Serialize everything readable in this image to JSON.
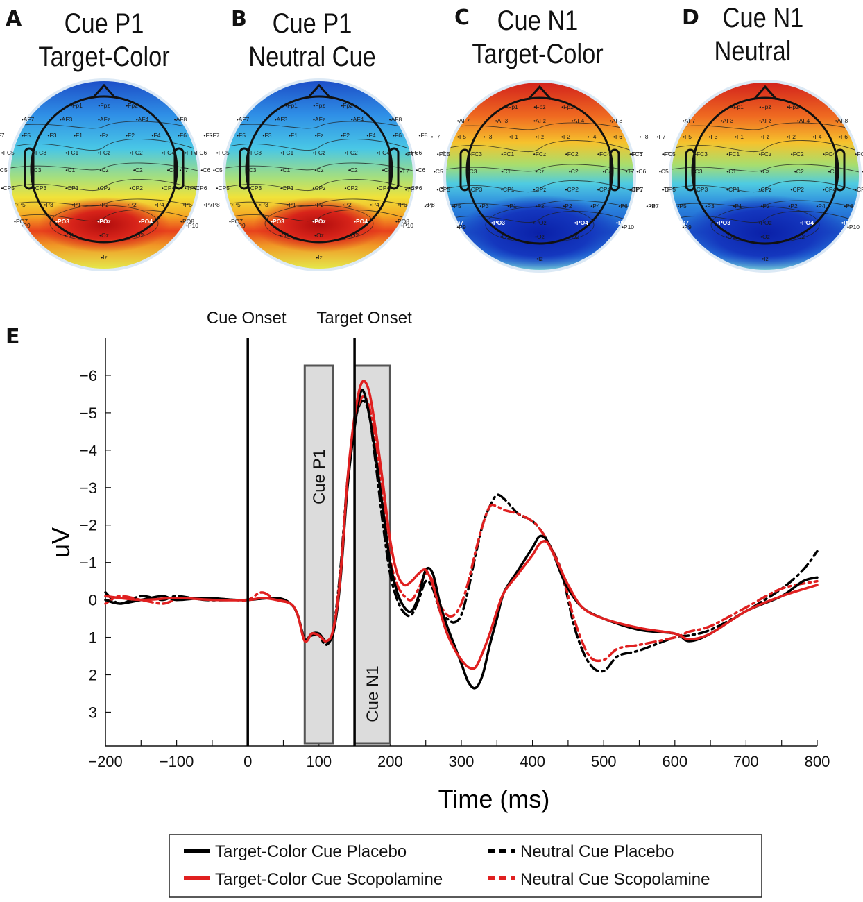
{
  "panels": [
    {
      "letter": "A",
      "title_line1": "Cue P1",
      "title_line2": "Target-Color"
    },
    {
      "letter": "B",
      "title_line1": "Cue P1",
      "title_line2": "Neutral Cue"
    },
    {
      "letter": "C",
      "title_line1": "Cue N1",
      "title_line2": "Target-Color"
    },
    {
      "letter": "D",
      "title_line1": "Cue N1",
      "title_line2": "Neutral"
    }
  ],
  "electrodes": {
    "fp": [
      "Fp1",
      "Fpz",
      "Fp2"
    ],
    "af": [
      "AF7",
      "AF3",
      "AFz",
      "AF4",
      "AF8"
    ],
    "f": [
      "F7",
      "F5",
      "F3",
      "F1",
      "Fz",
      "F2",
      "F4",
      "F6",
      "F8"
    ],
    "fc": [
      "FT7",
      "FC5",
      "FC3",
      "FC1",
      "FCz",
      "FC2",
      "FC4",
      "FC6",
      "FT8"
    ],
    "c": [
      "T7",
      "C5",
      "C3",
      "C1",
      "Cz",
      "C2",
      "C4",
      "C6",
      "T8"
    ],
    "cp": [
      "TP7",
      "CP5",
      "CP3",
      "CP1",
      "CPz",
      "CP2",
      "CP4",
      "CP6",
      "TP8"
    ],
    "p": [
      "P7",
      "P5",
      "P3",
      "P1",
      "Pz",
      "P2",
      "P4",
      "P6",
      "P8"
    ],
    "p_outer": [
      "P9",
      "P10"
    ],
    "po": [
      "PO7",
      "PO3",
      "POz",
      "PO4",
      "PO8"
    ],
    "o": [
      "O1",
      "Oz",
      "O2"
    ],
    "iz": "Iz",
    "highlight_p1": [
      "PO3",
      "POz",
      "PO4"
    ],
    "highlight_n1": [
      "PO7",
      "PO3",
      "PO4",
      "PO8"
    ]
  },
  "panel_e": {
    "letter": "E"
  },
  "chart_data": {
    "type": "line",
    "xlabel": "Time (ms)",
    "ylabel": "uV",
    "xlim": [
      -200,
      800
    ],
    "ylim": [
      3.9,
      -7.0
    ],
    "y_inverted": true,
    "x_ticks": [
      -200,
      -100,
      0,
      100,
      200,
      300,
      400,
      500,
      600,
      700,
      800
    ],
    "x_tick_labels": [
      "−200",
      "−100",
      "0",
      "100",
      "200",
      "300",
      "400",
      "500",
      "600",
      "700",
      "800"
    ],
    "y_ticks": [
      -6,
      -5,
      -4,
      -3,
      -2,
      -1,
      0,
      1,
      2,
      3
    ],
    "y_tick_labels": [
      "−6",
      "−5",
      "−4",
      "−3",
      "−2",
      "−1",
      "0",
      "1",
      "2",
      "3"
    ],
    "vlines": [
      {
        "x": 0,
        "label": "Cue Onset"
      },
      {
        "x": 150,
        "label": "Target Onset"
      }
    ],
    "windows": [
      {
        "x0": 80,
        "x1": 120,
        "label": "Cue P1"
      },
      {
        "x0": 150,
        "x1": 200,
        "label": "Cue N1"
      }
    ],
    "series": [
      {
        "name": "Target-Color Cue Placebo",
        "color": "#000000",
        "style": "solid",
        "x": [
          -200,
          -180,
          -150,
          -120,
          -100,
          -60,
          -20,
          0,
          40,
          60,
          70,
          80,
          90,
          100,
          110,
          120,
          130,
          140,
          150,
          160,
          170,
          180,
          190,
          200,
          210,
          220,
          230,
          240,
          250,
          260,
          270,
          280,
          290,
          300,
          310,
          320,
          330,
          340,
          350,
          360,
          380,
          400,
          410,
          420,
          430,
          440,
          450,
          470,
          500,
          550,
          600,
          620,
          650,
          700,
          750,
          780,
          800
        ],
        "y": [
          0,
          0.1,
          0.0,
          -0.1,
          0.0,
          -0.05,
          0.0,
          0.0,
          -0.05,
          0.1,
          0.4,
          1.05,
          0.9,
          0.9,
          1.1,
          0.9,
          -0.5,
          -3.0,
          -4.6,
          -5.6,
          -5.0,
          -3.8,
          -2.4,
          -1.0,
          -0.2,
          0.2,
          0.3,
          -0.1,
          -0.8,
          -0.7,
          0.1,
          0.7,
          1.2,
          1.7,
          2.2,
          2.35,
          2.0,
          1.2,
          0.5,
          -0.2,
          -0.8,
          -1.4,
          -1.7,
          -1.6,
          -1.2,
          -0.7,
          -0.3,
          0.2,
          0.5,
          0.8,
          0.9,
          1.1,
          0.9,
          0.3,
          -0.1,
          -0.5,
          -0.6
        ]
      },
      {
        "name": "Target-Color Cue Scopolamine",
        "color": "#e02020",
        "style": "solid",
        "x": [
          -200,
          -150,
          -100,
          -50,
          0,
          20,
          40,
          60,
          70,
          80,
          90,
          100,
          110,
          120,
          130,
          140,
          150,
          160,
          170,
          180,
          190,
          200,
          210,
          220,
          230,
          240,
          250,
          260,
          270,
          280,
          290,
          300,
          310,
          320,
          330,
          340,
          350,
          360,
          380,
          400,
          410,
          420,
          430,
          440,
          450,
          470,
          500,
          550,
          600,
          620,
          650,
          700,
          750,
          800
        ],
        "y": [
          -0.1,
          0.0,
          -0.05,
          0.0,
          0.0,
          -0.05,
          0.0,
          0.1,
          0.4,
          1.1,
          0.9,
          0.95,
          1.1,
          0.8,
          -0.6,
          -3.2,
          -4.9,
          -5.8,
          -5.6,
          -4.5,
          -3.1,
          -1.6,
          -0.7,
          -0.4,
          -0.5,
          -0.7,
          -0.8,
          -0.4,
          0.3,
          0.9,
          1.3,
          1.6,
          1.8,
          1.8,
          1.4,
          0.9,
          0.3,
          -0.2,
          -0.7,
          -1.2,
          -1.5,
          -1.55,
          -1.2,
          -0.8,
          -0.4,
          0.2,
          0.5,
          0.75,
          0.9,
          1.05,
          0.9,
          0.3,
          -0.1,
          -0.4
        ]
      },
      {
        "name": "Neutral Cue Placebo",
        "color": "#000000",
        "style": "dashed",
        "x": [
          -200,
          -180,
          -150,
          -120,
          -100,
          -60,
          -20,
          0,
          40,
          60,
          70,
          80,
          90,
          100,
          110,
          120,
          130,
          140,
          150,
          160,
          170,
          180,
          190,
          200,
          210,
          220,
          230,
          240,
          250,
          260,
          270,
          280,
          290,
          300,
          310,
          320,
          330,
          340,
          350,
          360,
          370,
          380,
          400,
          410,
          420,
          440,
          460,
          480,
          500,
          520,
          550,
          600,
          620,
          650,
          700,
          750,
          780,
          800
        ],
        "y": [
          -0.2,
          0.1,
          -0.1,
          0.0,
          -0.1,
          0.0,
          0.0,
          0.0,
          -0.05,
          0.1,
          0.4,
          1.05,
          0.95,
          0.95,
          1.2,
          0.8,
          -0.8,
          -3.2,
          -4.7,
          -5.3,
          -5.0,
          -3.6,
          -2.0,
          -0.7,
          0.0,
          0.35,
          0.4,
          0.0,
          -0.5,
          -0.3,
          0.3,
          0.5,
          0.6,
          0.4,
          -0.3,
          -1.2,
          -2.0,
          -2.5,
          -2.8,
          -2.7,
          -2.5,
          -2.3,
          -2.1,
          -1.9,
          -1.6,
          -0.8,
          0.8,
          1.7,
          1.9,
          1.5,
          1.35,
          1.0,
          0.95,
          0.8,
          0.3,
          -0.3,
          -0.8,
          -1.3
        ]
      },
      {
        "name": "Neutral Cue Scopolamine",
        "color": "#e02020",
        "style": "dashed",
        "x": [
          -200,
          -180,
          -150,
          -120,
          -100,
          -60,
          -20,
          0,
          20,
          40,
          60,
          70,
          80,
          90,
          100,
          110,
          120,
          130,
          140,
          150,
          160,
          170,
          180,
          190,
          200,
          210,
          220,
          230,
          240,
          250,
          260,
          270,
          280,
          290,
          300,
          310,
          320,
          330,
          340,
          350,
          360,
          380,
          400,
          410,
          420,
          440,
          460,
          480,
          500,
          520,
          550,
          600,
          620,
          650,
          700,
          750,
          800
        ],
        "y": [
          0.1,
          -0.1,
          0.0,
          0.1,
          0.0,
          -0.05,
          0.0,
          0.0,
          -0.2,
          0.0,
          0.1,
          0.4,
          1.1,
          0.9,
          0.95,
          1.1,
          0.8,
          -0.7,
          -3.1,
          -4.7,
          -5.4,
          -5.2,
          -4.1,
          -2.6,
          -1.1,
          -0.4,
          -0.1,
          0.0,
          -0.3,
          -0.7,
          -0.5,
          0.1,
          0.4,
          0.4,
          0.1,
          -0.5,
          -1.3,
          -2.0,
          -2.5,
          -2.5,
          -2.4,
          -2.3,
          -2.1,
          -1.9,
          -1.6,
          -0.8,
          0.6,
          1.5,
          1.6,
          1.3,
          1.2,
          1.0,
          0.85,
          0.7,
          0.2,
          -0.3,
          -0.5
        ]
      }
    ]
  }
}
